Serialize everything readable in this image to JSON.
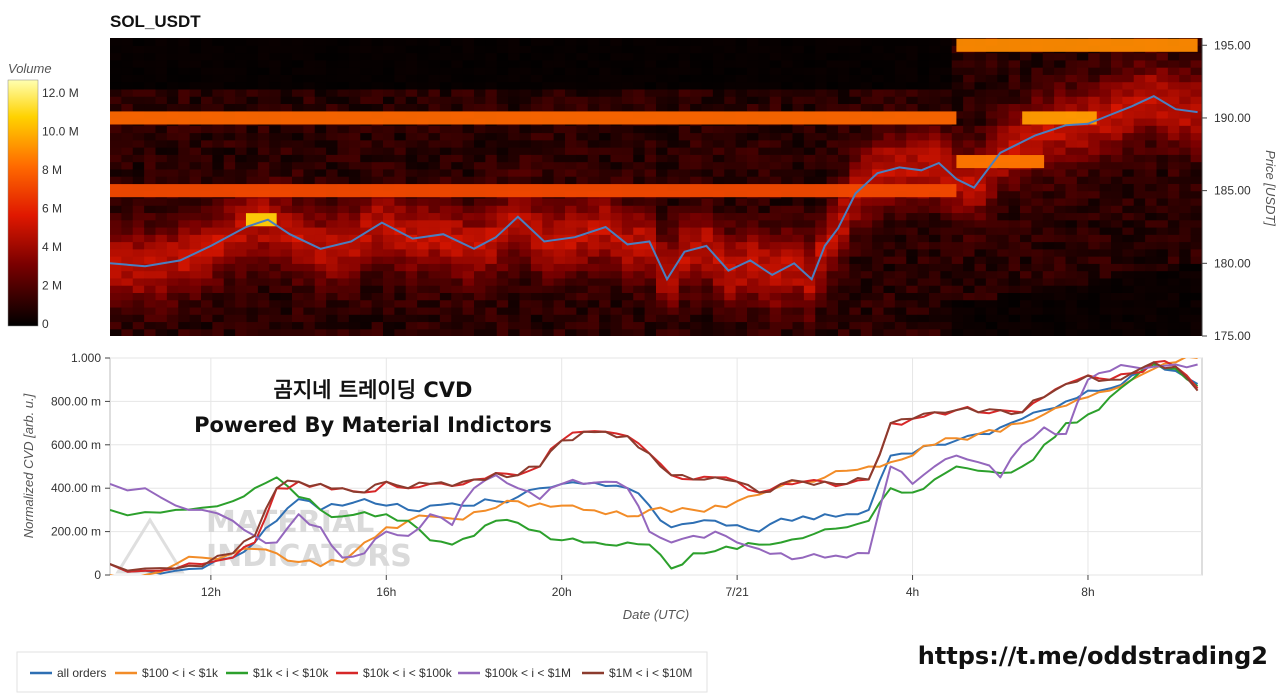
{
  "chart_data": [
    {
      "type": "heatmap",
      "title": "SOL_USDT",
      "ylabel": "Price [USDT]",
      "ylim": [
        175,
        195.5
      ],
      "yticks": [
        "195.00",
        "190.00",
        "185.00",
        "180.00",
        "175.00"
      ],
      "colorbar": {
        "label": "Volume",
        "ticks": [
          "12.0 M",
          "10.0 M",
          "8 M",
          "6 M",
          "4 M",
          "2 M",
          "0"
        ],
        "range_millions": [
          0,
          14
        ]
      },
      "price_line": {
        "color": "#4a7fc1",
        "x_hours": [
          9.7,
          10.5,
          11.3,
          12.0,
          12.8,
          13.3,
          13.8,
          14.5,
          15.2,
          15.9,
          16.6,
          17.3,
          18.0,
          18.5,
          19.0,
          19.6,
          20.3,
          21.0,
          21.5,
          22.0,
          22.4,
          22.8,
          23.3,
          23.8,
          24.3,
          24.8,
          25.3,
          25.7,
          26.0,
          26.3,
          26.7,
          27.2,
          27.7,
          28.2,
          28.6,
          29.0,
          29.4,
          30.0,
          30.8,
          31.5,
          32.0,
          32.5,
          33.0,
          33.5,
          34.0,
          34.5
        ],
        "price": [
          180.0,
          179.8,
          180.2,
          181.2,
          182.5,
          183.0,
          182.0,
          181.0,
          181.5,
          182.8,
          181.7,
          182.0,
          181.0,
          181.8,
          183.2,
          181.5,
          181.8,
          182.5,
          181.3,
          181.5,
          178.9,
          180.8,
          181.2,
          179.5,
          180.2,
          179.2,
          180.0,
          178.9,
          181.2,
          182.4,
          184.8,
          186.2,
          186.6,
          186.4,
          186.9,
          185.8,
          185.2,
          187.6,
          188.8,
          189.5,
          189.6,
          190.2,
          190.8,
          191.5,
          190.6,
          190.4
        ]
      },
      "liquidity_bands": [
        {
          "price": 195.0,
          "level": 10.0,
          "from_hour": 29.0,
          "to_hour": 34.5
        },
        {
          "price": 190.0,
          "level": 9.0,
          "from_hour": 9.7,
          "to_hour": 29.0
        },
        {
          "price": 190.0,
          "level": 10.5,
          "from_hour": 30.5,
          "to_hour": 32.2
        },
        {
          "price": 185.0,
          "level": 8.0,
          "from_hour": 9.7,
          "to_hour": 29.0
        },
        {
          "price": 183.0,
          "level": 12.0,
          "from_hour": 12.8,
          "to_hour": 13.5
        },
        {
          "price": 187.0,
          "level": 9.5,
          "from_hour": 29.0,
          "to_hour": 31.0
        }
      ]
    },
    {
      "type": "line",
      "xlabel": "Date (UTC)",
      "ylabel": "Normalized CVD [arb. u.]",
      "ylim": [
        0,
        1.0
      ],
      "yticks": [
        "1.000",
        "800.00 m",
        "600.00 m",
        "400.00 m",
        "200.00 m",
        "0"
      ],
      "xlim": [
        9.7,
        34.6
      ],
      "x_ticks": [
        {
          "hour": 12,
          "label": "12h"
        },
        {
          "hour": 16,
          "label": "16h"
        },
        {
          "hour": 20,
          "label": "20h"
        },
        {
          "hour": 24,
          "label": "7/21"
        },
        {
          "hour": 28,
          "label": "4h"
        },
        {
          "hour": 32,
          "label": "8h"
        }
      ],
      "x": [
        9.7,
        10.5,
        11.2,
        11.8,
        12.5,
        13.0,
        13.5,
        14.0,
        14.5,
        15.0,
        15.5,
        16.0,
        16.5,
        17.0,
        17.5,
        18.0,
        18.5,
        19.0,
        19.5,
        20.0,
        20.5,
        21.0,
        21.5,
        22.0,
        22.5,
        23.0,
        23.5,
        24.0,
        24.5,
        25.0,
        25.5,
        26.0,
        26.5,
        27.0,
        27.5,
        28.0,
        28.5,
        29.0,
        29.5,
        30.0,
        30.5,
        31.0,
        31.5,
        32.0,
        32.5,
        33.0,
        33.5,
        34.0,
        34.5
      ],
      "series": [
        {
          "name": "all orders",
          "color": "#2e6fb3",
          "values": [
            0.05,
            0.02,
            0.02,
            0.03,
            0.08,
            0.15,
            0.25,
            0.35,
            0.3,
            0.32,
            0.35,
            0.32,
            0.3,
            0.32,
            0.33,
            0.32,
            0.34,
            0.36,
            0.4,
            0.42,
            0.42,
            0.41,
            0.4,
            0.32,
            0.22,
            0.24,
            0.25,
            0.23,
            0.2,
            0.26,
            0.27,
            0.28,
            0.28,
            0.3,
            0.55,
            0.56,
            0.6,
            0.62,
            0.65,
            0.68,
            0.72,
            0.76,
            0.8,
            0.85,
            0.86,
            0.92,
            0.98,
            0.94,
            0.88
          ]
        },
        {
          "name": "$100 < i < $1k",
          "color": "#f28c28",
          "values": [
            0.0,
            0.0,
            0.05,
            0.08,
            0.1,
            0.12,
            0.1,
            0.06,
            0.04,
            0.06,
            0.15,
            0.22,
            0.25,
            0.27,
            0.26,
            0.29,
            0.31,
            0.34,
            0.33,
            0.32,
            0.3,
            0.28,
            0.27,
            0.3,
            0.29,
            0.3,
            0.32,
            0.34,
            0.37,
            0.41,
            0.43,
            0.45,
            0.48,
            0.5,
            0.52,
            0.55,
            0.6,
            0.63,
            0.65,
            0.66,
            0.7,
            0.74,
            0.78,
            0.82,
            0.85,
            0.9,
            0.95,
            0.98,
            1.0
          ]
        },
        {
          "name": "$1k < i < $10k",
          "color": "#2ca02c",
          "values": [
            0.3,
            0.29,
            0.3,
            0.31,
            0.34,
            0.4,
            0.45,
            0.36,
            0.3,
            0.27,
            0.29,
            0.28,
            0.25,
            0.16,
            0.14,
            0.18,
            0.25,
            0.24,
            0.2,
            0.16,
            0.15,
            0.14,
            0.15,
            0.14,
            0.03,
            0.1,
            0.11,
            0.12,
            0.14,
            0.15,
            0.17,
            0.21,
            0.22,
            0.25,
            0.4,
            0.38,
            0.44,
            0.5,
            0.48,
            0.47,
            0.5,
            0.6,
            0.7,
            0.74,
            0.82,
            0.9,
            0.97,
            0.95,
            0.87
          ]
        },
        {
          "name": "$10k < i < $100k",
          "color": "#d62728",
          "values": [
            0.05,
            0.02,
            0.03,
            0.05,
            0.08,
            0.15,
            0.4,
            0.43,
            0.42,
            0.4,
            0.38,
            0.43,
            0.4,
            0.42,
            0.41,
            0.44,
            0.47,
            0.46,
            0.5,
            0.62,
            0.66,
            0.66,
            0.64,
            0.56,
            0.46,
            0.44,
            0.45,
            0.43,
            0.38,
            0.42,
            0.43,
            0.43,
            0.42,
            0.44,
            0.7,
            0.72,
            0.75,
            0.76,
            0.75,
            0.76,
            0.75,
            0.82,
            0.88,
            0.92,
            0.9,
            0.93,
            0.98,
            0.96,
            0.86
          ]
        },
        {
          "name": "$100k < i < $1M",
          "color": "#9467bd",
          "values": [
            0.42,
            0.4,
            0.32,
            0.3,
            0.25,
            0.18,
            0.15,
            0.28,
            0.22,
            0.08,
            0.1,
            0.2,
            0.18,
            0.28,
            0.23,
            0.4,
            0.46,
            0.4,
            0.35,
            0.42,
            0.42,
            0.43,
            0.4,
            0.2,
            0.15,
            0.18,
            0.2,
            0.15,
            0.12,
            0.1,
            0.08,
            0.08,
            0.08,
            0.1,
            0.5,
            0.42,
            0.5,
            0.55,
            0.52,
            0.45,
            0.6,
            0.68,
            0.65,
            0.9,
            0.94,
            0.96,
            0.96,
            0.97,
            0.97
          ]
        },
        {
          "name": "$1M < i < $10M",
          "color": "#8c3b2e",
          "values": [
            0.05,
            0.03,
            0.03,
            0.04,
            0.1,
            0.18,
            0.4,
            0.43,
            0.42,
            0.4,
            0.38,
            0.43,
            0.4,
            0.42,
            0.41,
            0.44,
            0.47,
            0.46,
            0.5,
            0.62,
            0.66,
            0.66,
            0.64,
            0.56,
            0.46,
            0.44,
            0.45,
            0.43,
            0.38,
            0.42,
            0.43,
            0.43,
            0.42,
            0.44,
            0.7,
            0.72,
            0.75,
            0.76,
            0.75,
            0.76,
            0.75,
            0.82,
            0.88,
            0.92,
            0.9,
            0.93,
            0.98,
            0.96,
            0.85
          ]
        }
      ]
    }
  ],
  "overlay": {
    "line1": "곰지네 트레이딩 CVD",
    "line2": "Powered By Material Indictors"
  },
  "watermark": {
    "line1": "MATERIAL",
    "line2": "INDICATORS"
  },
  "channel_url": "https://t.me/oddstrading2",
  "colors": {
    "heatmap_bg": "#1a0000",
    "grid": "#e6e6e6",
    "axis": "#444444"
  }
}
